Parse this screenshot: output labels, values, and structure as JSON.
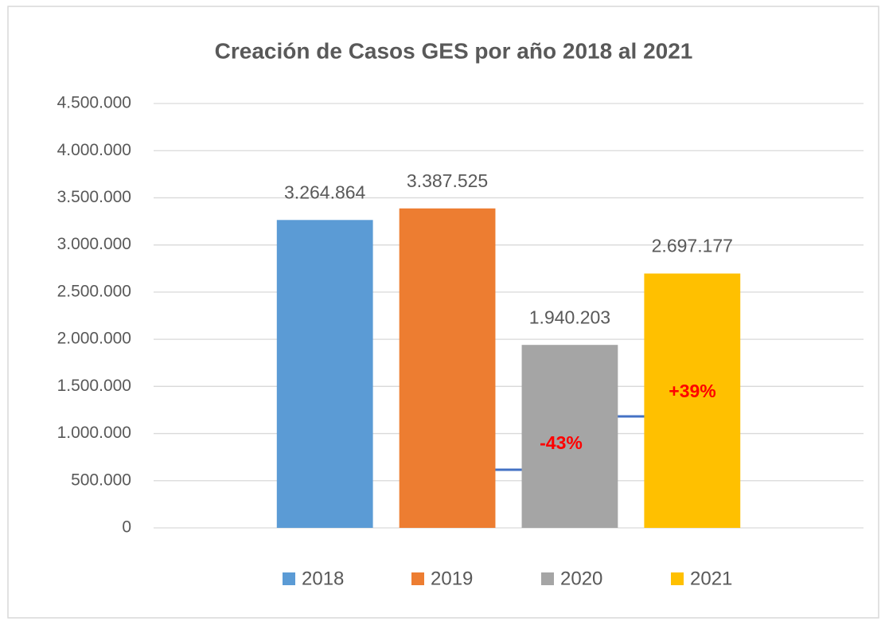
{
  "chart_data": {
    "type": "bar",
    "title": "Creación de Casos GES por año 2018 al 2021",
    "categories": [
      null
    ],
    "series": [
      {
        "name": "2018",
        "color": "#5b9bd5",
        "values": [
          3264864
        ],
        "value_labels": [
          "3.264.864"
        ]
      },
      {
        "name": "2019",
        "color": "#ed7d31",
        "values": [
          3387525
        ],
        "value_labels": [
          "3.387.525"
        ]
      },
      {
        "name": "2020",
        "color": "#a5a5a5",
        "values": [
          1940203
        ],
        "value_labels": [
          "1.940.203"
        ]
      },
      {
        "name": "2021",
        "color": "#ffc000",
        "values": [
          2697177
        ],
        "value_labels": [
          "2.697.177"
        ]
      }
    ],
    "ylim": [
      0,
      4500000
    ],
    "yticks": [
      0,
      {
        "value": 500000,
        "label": "500.000"
      },
      {
        "value": 1000000,
        "label": "1.000.000"
      },
      {
        "value": 1500000,
        "label": "1.500.000"
      },
      {
        "value": 2000000,
        "label": "2.000.000"
      },
      {
        "value": 2500000,
        "label": "2.500.000"
      },
      {
        "value": 3000000,
        "label": "3.000.000"
      },
      {
        "value": 3500000,
        "label": "3.500.000"
      },
      {
        "value": 4000000,
        "label": "4.000.000"
      },
      {
        "value": 4500000,
        "label": "4.500.000"
      }
    ],
    "grid": true,
    "legend": "bottom",
    "annotations": [
      "-43%",
      "+39%"
    ]
  }
}
